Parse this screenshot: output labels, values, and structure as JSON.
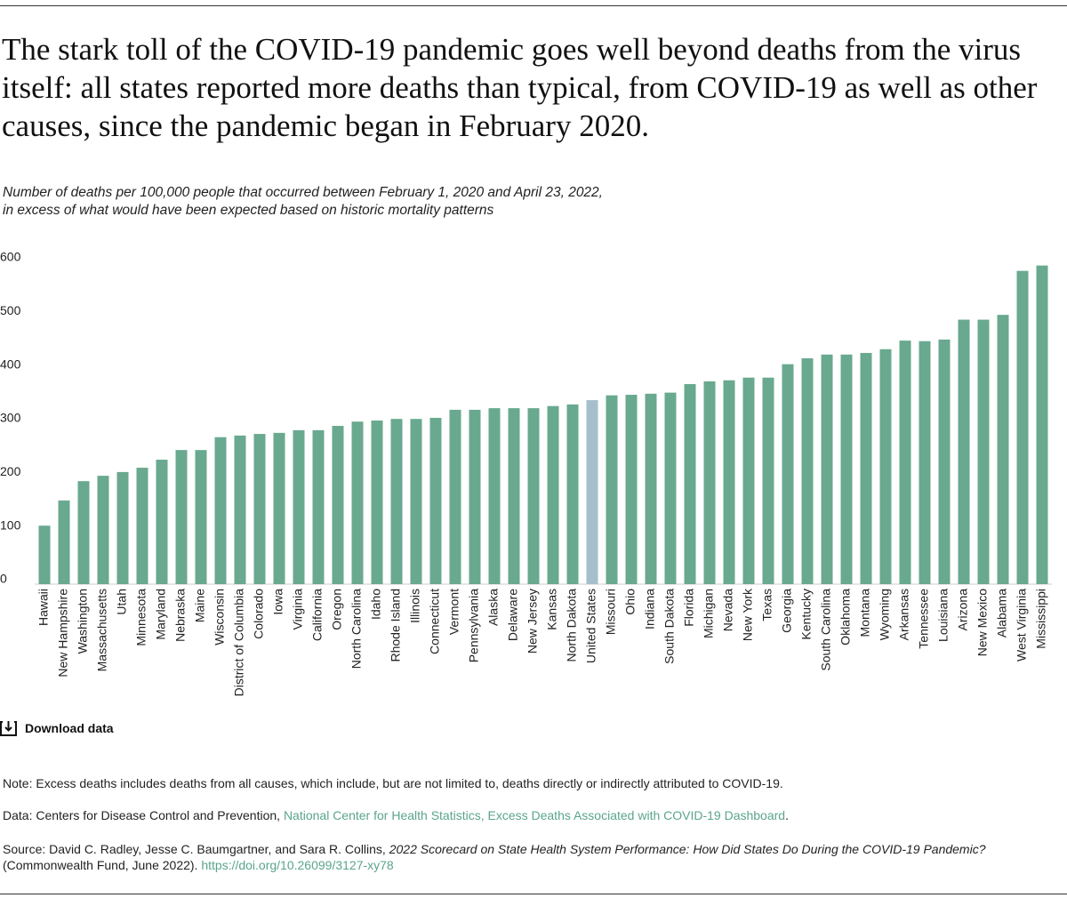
{
  "chart_data": {
    "type": "bar",
    "title": "The stark toll of the COVID-19 pandemic goes well beyond deaths from the virus itself: all states reported more deaths than typical, from COVID-19 as well as other causes, since the pandemic began in February 2020.",
    "subtitle": [
      "Number of deaths per 100,000 people that occurred between February 1, 2020 and April 23, 2022,",
      "in excess of what would have been expected based on historic mortality patterns"
    ],
    "categories": [
      "Hawaii",
      "New Hampshire",
      "Washington",
      "Massachusetts",
      "Utah",
      "Minnesota",
      "Maryland",
      "Nebraska",
      "Maine",
      "Wisconsin",
      "District of Columbia",
      "Colorado",
      "Iowa",
      "Virginia",
      "California",
      "Oregon",
      "North Carolina",
      "Idaho",
      "Rhode Island",
      "Illinois",
      "Connecticut",
      "Vermont",
      "Pennsylvania",
      "Alaska",
      "Delaware",
      "New Jersey",
      "Kansas",
      "North Dakota",
      "United States",
      "Missouri",
      "Ohio",
      "Indiana",
      "South Dakota",
      "Florida",
      "Michigan",
      "Nevada",
      "New York",
      "Texas",
      "Georgia",
      "Kentucky",
      "South Carolina",
      "Oklahoma",
      "Montana",
      "Wyoming",
      "Arkansas",
      "Tennessee",
      "Louisiana",
      "Arizona",
      "New Mexico",
      "Alabama",
      "West Virginia",
      "Mississippi"
    ],
    "values": [
      109,
      156,
      192,
      202,
      209,
      217,
      232,
      250,
      250,
      274,
      277,
      280,
      282,
      287,
      287,
      295,
      303,
      305,
      308,
      308,
      310,
      325,
      325,
      328,
      328,
      328,
      332,
      335,
      343,
      352,
      353,
      355,
      357,
      373,
      378,
      380,
      385,
      385,
      410,
      421,
      428,
      428,
      431,
      438,
      454,
      453,
      456,
      493,
      493,
      502,
      584,
      594
    ],
    "color": "#69a98f",
    "highlight_category": "United States",
    "highlight_color": "#a5bfcd",
    "ylim": [
      0,
      600
    ],
    "yticks": [
      0,
      100,
      200,
      300,
      400,
      500,
      600
    ],
    "grid": false
  },
  "download_label": "Download data",
  "note": "Note: Excess deaths includes deaths from all causes, which include, but are not limited to, deaths directly or indirectly attributed to COVID-19.",
  "data_source": {
    "prefix": "Data: Centers for Disease Control and Prevention, ",
    "link": "National Center for Health Statistics, Excess Deaths Associated with COVID-19 Dashboard",
    "suffix": "."
  },
  "source": {
    "prefix": "Source: David C. Radley, Jesse C. Baumgartner, and Sara R. Collins, ",
    "report": "2022 Scorecard on State Health System Performance: How Did States Do During the COVID-19 Pandemic?",
    "suffix": "(Commonwealth Fund, June 2022). ",
    "link": "https://doi.org/10.26099/3127-xy78"
  }
}
